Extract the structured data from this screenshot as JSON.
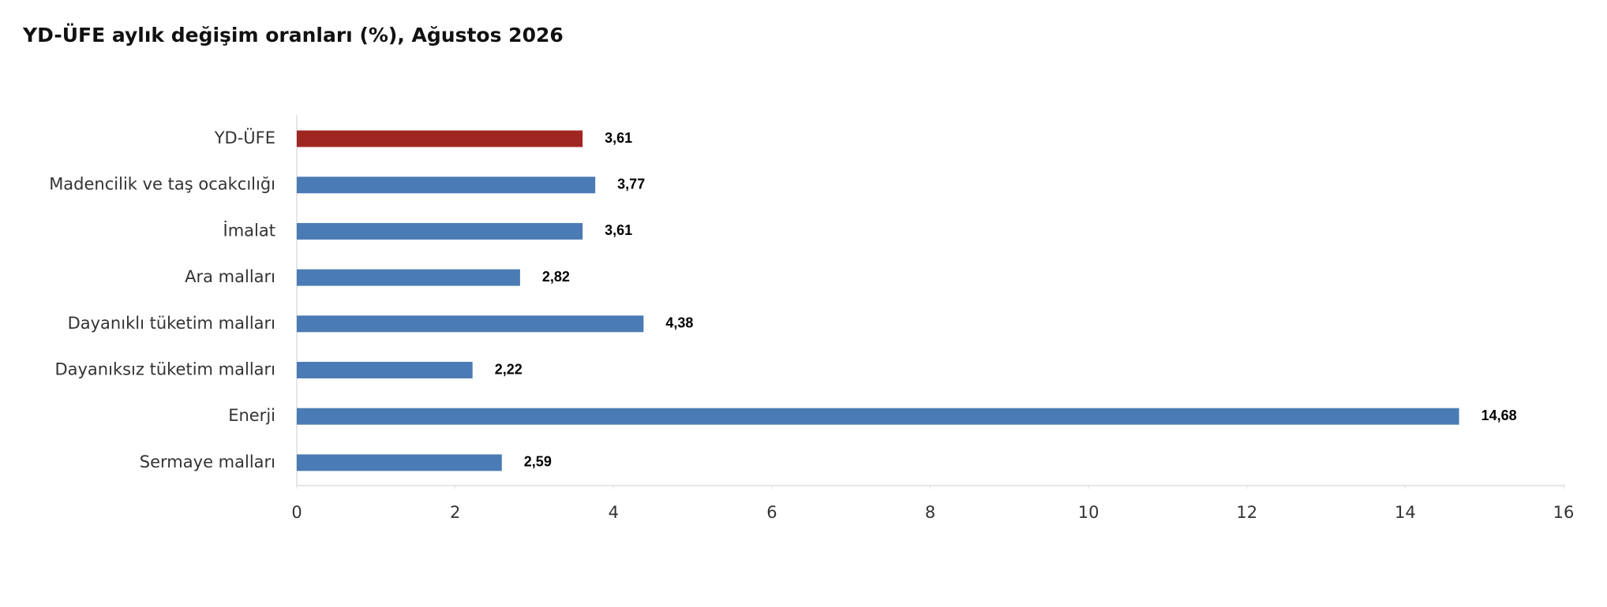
{
  "chart_data": {
    "type": "barh",
    "title": "YD-ÜFE aylık değişim oranları (%), Ağustos 2026",
    "categories": [
      "YD-ÜFE",
      "Madencilik ve taş ocakcılığı",
      "İmalat",
      "Ara malları",
      "Dayanıklı tüketim malları",
      "Dayanıksız tüketim malları",
      "Enerji",
      "Sermaye malları"
    ],
    "values": [
      3.61,
      3.77,
      3.61,
      2.82,
      4.38,
      2.22,
      14.68,
      2.59
    ],
    "value_labels": [
      "3,61",
      "3,77",
      "3,61",
      "2,82",
      "4,38",
      "2,22",
      "14,68",
      "2,59"
    ],
    "colors": [
      "#a02622",
      "#4a7bb4",
      "#4a7bb4",
      "#4a7bb4",
      "#4a7bb4",
      "#4a7bb4",
      "#4a7bb4",
      "#4a7bb4"
    ],
    "xlim": [
      0,
      16
    ],
    "xticks": [
      0,
      2,
      4,
      6,
      8,
      10,
      12,
      14,
      16
    ],
    "grid": false
  }
}
